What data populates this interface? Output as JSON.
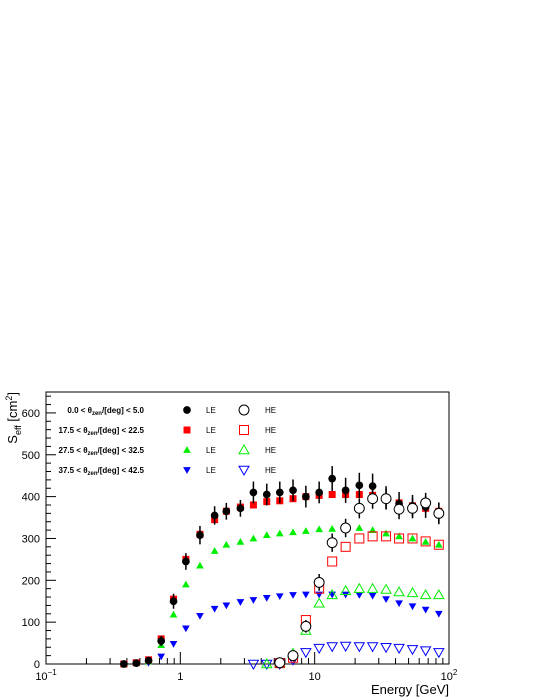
{
  "chart_data": {
    "type": "scatter",
    "xlabel": "Energy [GeV]",
    "ylabel_main": "S",
    "ylabel_sub": "eff",
    "ylabel_unit": " [cm",
    "ylabel_sup": "2",
    "ylabel_close": "]",
    "xscale": "log",
    "xlim": [
      0.1,
      100
    ],
    "ylim": [
      0,
      650
    ],
    "grid": false,
    "legend_position": "top-left",
    "x_tick_labels": [
      {
        "base": "10",
        "exp": "−1",
        "value": 0.1
      },
      {
        "base": "1",
        "exp": "",
        "value": 1
      },
      {
        "base": "10",
        "exp": "",
        "value": 10
      },
      {
        "base": "10",
        "exp": "2",
        "value": 100
      }
    ],
    "y_ticks": [
      0,
      100,
      200,
      300,
      400,
      500,
      600
    ],
    "legend_rows": [
      {
        "lo": "0.0",
        "hi": "5.0",
        "le_label": "LE",
        "he_label": "HE"
      },
      {
        "lo": "17.5",
        "hi": "22.5",
        "le_label": "LE",
        "he_label": "HE"
      },
      {
        "lo": "27.5",
        "hi": "32.5",
        "le_label": "LE",
        "he_label": "HE"
      },
      {
        "lo": "37.5",
        "hi": "42.5",
        "le_label": "LE",
        "he_label": "HE"
      }
    ],
    "legend_theta_text": "θ",
    "legend_theta_sub": "zen",
    "legend_unit_text": "/[deg]",
    "series": [
      {
        "group": 0,
        "kind": "LE",
        "marker": "circle",
        "filled": true,
        "color": "#000000",
        "x": [
          0.38,
          0.47,
          0.58,
          0.72,
          0.89,
          1.1,
          1.4,
          1.8,
          2.2,
          2.8,
          3.5,
          4.4,
          5.5,
          6.9,
          8.6,
          10.8,
          13.5,
          17,
          21.5,
          27,
          34,
          42.5,
          53.5,
          67,
          84
        ],
        "y": [
          0,
          2,
          8,
          55,
          150,
          245,
          308,
          355,
          365,
          372,
          410,
          405,
          410,
          415,
          400,
          410,
          443,
          415,
          427,
          425,
          397,
          383,
          378,
          375,
          360
        ],
        "err": [
          0,
          2,
          4,
          12,
          18,
          20,
          22,
          22,
          20,
          20,
          26,
          26,
          26,
          26,
          26,
          26,
          30,
          30,
          30,
          30,
          28,
          28,
          26,
          26,
          26
        ]
      },
      {
        "group": 1,
        "kind": "LE",
        "marker": "square",
        "filled": true,
        "color": "#ff0000",
        "x": [
          0.38,
          0.47,
          0.58,
          0.72,
          0.89,
          1.1,
          1.4,
          1.8,
          2.2,
          2.8,
          3.5,
          4.4,
          5.5,
          6.9,
          8.6,
          10.8,
          13.5,
          17,
          21.5,
          27,
          34,
          42.5,
          53.5,
          67,
          84
        ],
        "y": [
          0,
          3,
          10,
          60,
          155,
          250,
          310,
          345,
          365,
          375,
          380,
          388,
          390,
          395,
          400,
          403,
          405,
          405,
          405,
          403,
          395,
          385,
          378,
          372,
          365
        ],
        "err": []
      },
      {
        "group": 2,
        "kind": "LE",
        "marker": "triangle-up",
        "filled": true,
        "color": "#00ee00",
        "x": [
          0.38,
          0.47,
          0.58,
          0.72,
          0.89,
          1.1,
          1.4,
          1.8,
          2.2,
          2.8,
          3.5,
          4.4,
          5.5,
          6.9,
          8.6,
          10.8,
          13.5,
          17,
          21.5,
          27,
          34,
          42.5,
          53.5,
          67,
          84
        ],
        "y": [
          0,
          2,
          6,
          45,
          118,
          190,
          235,
          270,
          285,
          292,
          300,
          308,
          312,
          315,
          318,
          322,
          323,
          325,
          325,
          320,
          312,
          305,
          300,
          292,
          285
        ],
        "err": []
      },
      {
        "group": 3,
        "kind": "LE",
        "marker": "triangle-down",
        "filled": true,
        "color": "#0000ff",
        "x": [
          0.38,
          0.47,
          0.58,
          0.72,
          0.89,
          1.1,
          1.4,
          1.8,
          2.2,
          2.8,
          3.5,
          4.4,
          5.5,
          6.9,
          8.6,
          10.8,
          13.5,
          17,
          21.5,
          27,
          34,
          42.5,
          53.5,
          67,
          84
        ],
        "y": [
          0,
          1,
          3,
          18,
          48,
          85,
          115,
          132,
          140,
          148,
          153,
          158,
          162,
          165,
          166,
          166,
          166,
          166,
          165,
          163,
          155,
          145,
          138,
          130,
          120
        ],
        "err": []
      },
      {
        "group": 0,
        "kind": "HE",
        "marker": "circle",
        "filled": false,
        "color": "#000000",
        "x": [
          5.5,
          6.9,
          8.6,
          10.8,
          13.5,
          17,
          21.5,
          27,
          34,
          42.5,
          53.5,
          67,
          84
        ],
        "y": [
          3,
          20,
          90,
          195,
          290,
          325,
          372,
          395,
          395,
          370,
          372,
          385,
          360
        ],
        "err": [
          2,
          5,
          15,
          20,
          22,
          22,
          24,
          24,
          24,
          24,
          24,
          24,
          24
        ]
      },
      {
        "group": 1,
        "kind": "HE",
        "marker": "square",
        "filled": false,
        "color": "#ff0000",
        "x": [
          5.5,
          6.9,
          8.6,
          10.8,
          13.5,
          17,
          21.5,
          27,
          34,
          42.5,
          53.5,
          67,
          84
        ],
        "y": [
          2,
          15,
          105,
          180,
          245,
          280,
          300,
          305,
          305,
          300,
          300,
          293,
          285
        ],
        "err": []
      },
      {
        "group": 2,
        "kind": "HE",
        "marker": "triangle-up",
        "filled": false,
        "color": "#00ee00",
        "x": [
          4.4,
          5.5,
          6.9,
          8.6,
          10.8,
          13.5,
          17,
          21.5,
          27,
          34,
          42.5,
          53.5,
          67,
          84
        ],
        "y": [
          0,
          2,
          25,
          80,
          145,
          165,
          175,
          180,
          180,
          178,
          172,
          170,
          165,
          165
        ],
        "err": []
      },
      {
        "group": 3,
        "kind": "HE",
        "marker": "triangle-down",
        "filled": false,
        "color": "#0000ff",
        "x": [
          3.5,
          4.4,
          5.5,
          6.9,
          8.6,
          10.8,
          13.5,
          17,
          21.5,
          27,
          34,
          42.5,
          53.5,
          67,
          84
        ],
        "y": [
          0,
          0,
          0,
          10,
          28,
          38,
          42,
          43,
          42,
          42,
          40,
          38,
          35,
          32,
          28
        ],
        "err": []
      }
    ]
  }
}
